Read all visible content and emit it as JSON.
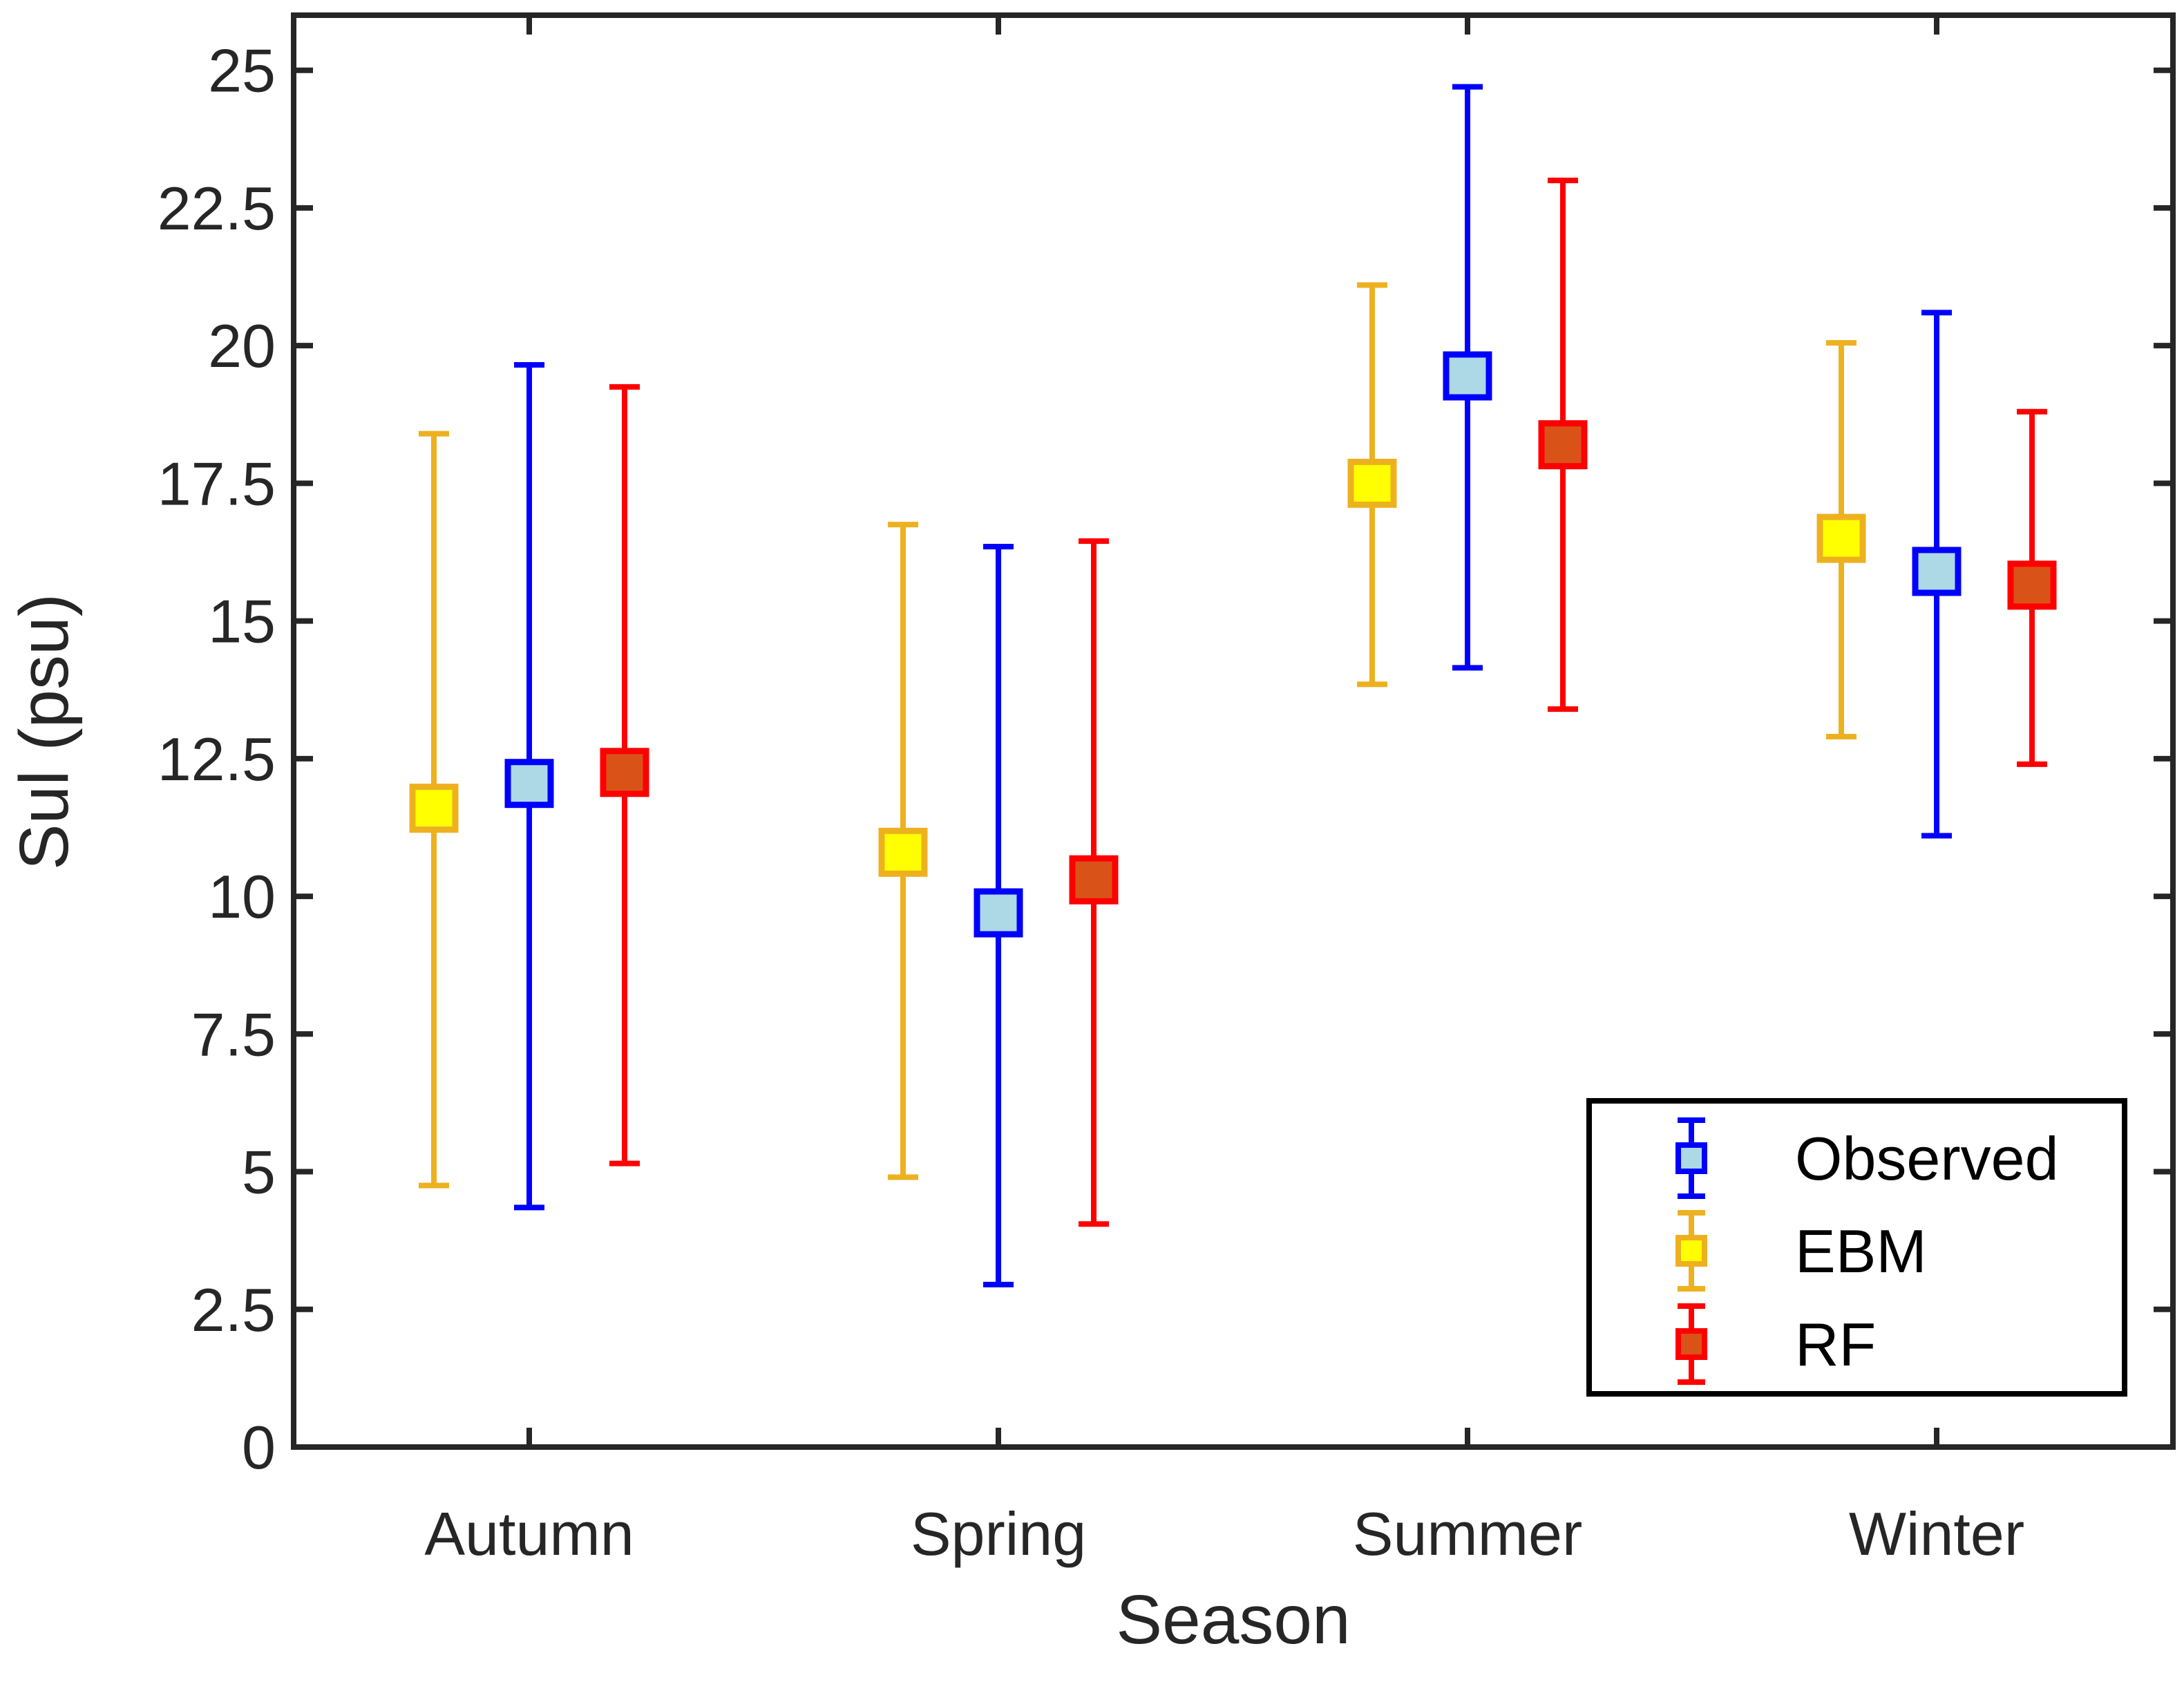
{
  "chart_data": {
    "type": "errorbar",
    "xlabel": "Season",
    "ylabel": "Sul (psu)",
    "categories": [
      "Autumn",
      "Spring",
      "Summer",
      "Winter"
    ],
    "ylim": [
      0,
      26
    ],
    "yticks": [
      0,
      2.5,
      5,
      7.5,
      10,
      12.5,
      15,
      17.5,
      20,
      22.5,
      25
    ],
    "ytick_labels": [
      "0",
      "2.5",
      "5",
      "7.5",
      "10",
      "12.5",
      "15",
      "17.5",
      "20",
      "22.5",
      "25"
    ],
    "grid": false,
    "legend": {
      "position": "bottom-right",
      "entries": [
        "Observed",
        "EBM",
        "RF"
      ]
    },
    "series": [
      {
        "name": "EBM",
        "line_color": "#EDB120",
        "marker_fill": "#FFFF00",
        "marker_edge": "#EDB120",
        "mean": [
          11.6,
          10.8,
          17.5,
          16.5
        ],
        "lower": [
          4.75,
          4.9,
          13.85,
          12.9
        ],
        "upper": [
          18.4,
          16.75,
          21.1,
          20.05
        ]
      },
      {
        "name": "Observed",
        "line_color": "#0000FF",
        "marker_fill": "#ADD8E6",
        "marker_edge": "#0000FF",
        "mean": [
          12.05,
          9.7,
          19.45,
          15.9
        ],
        "lower": [
          4.35,
          2.95,
          14.15,
          11.1
        ],
        "upper": [
          19.65,
          16.35,
          24.7,
          20.6
        ]
      },
      {
        "name": "RF",
        "line_color": "#FF0000",
        "marker_fill": "#D95319",
        "marker_edge": "#FF0000",
        "mean": [
          12.25,
          10.3,
          18.2,
          15.65
        ],
        "lower": [
          5.15,
          4.05,
          13.4,
          12.4
        ],
        "upper": [
          19.25,
          16.45,
          23.0,
          18.8
        ]
      }
    ]
  }
}
